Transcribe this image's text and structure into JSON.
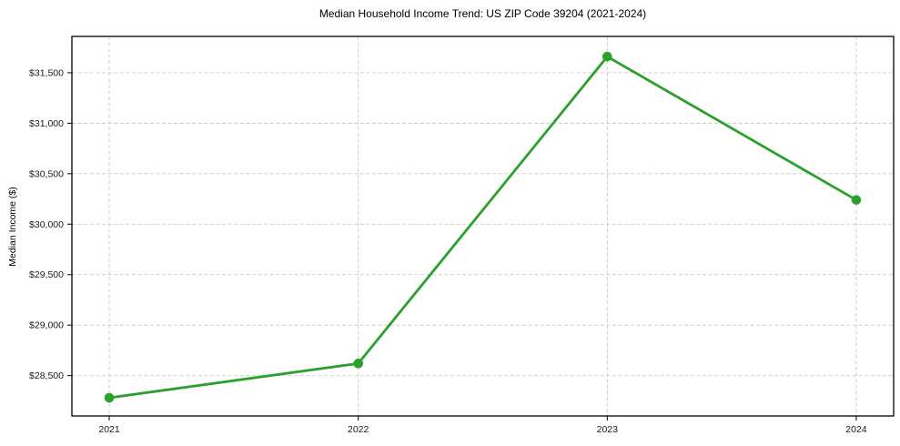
{
  "chart_data": {
    "type": "line",
    "title": "Median Household Income Trend: US ZIP Code 39204 (2021-2024)",
    "xlabel": "",
    "ylabel": "Median Income ($)",
    "categories": [
      "2021",
      "2022",
      "2023",
      "2024"
    ],
    "x": [
      2021,
      2022,
      2023,
      2024
    ],
    "series": [
      {
        "name": "Median Household Income",
        "values": [
          28280,
          28620,
          31660,
          30240
        ]
      }
    ],
    "yticks": [
      28500,
      29000,
      29500,
      30000,
      30500,
      31000,
      31500
    ],
    "ytick_labels": [
      "$28,500",
      "$29,000",
      "$29,500",
      "$30,000",
      "$30,500",
      "$31,000",
      "$31,500"
    ],
    "ylim": [
      28100,
      31860
    ],
    "xlim": [
      2020.85,
      2024.15
    ],
    "grid": true,
    "legend_position": "none",
    "line_color": "#2ca02c",
    "marker": "circle",
    "grid_color": "#c8c8c8",
    "axis_color": "#000000",
    "background_color": "#ffffff"
  }
}
